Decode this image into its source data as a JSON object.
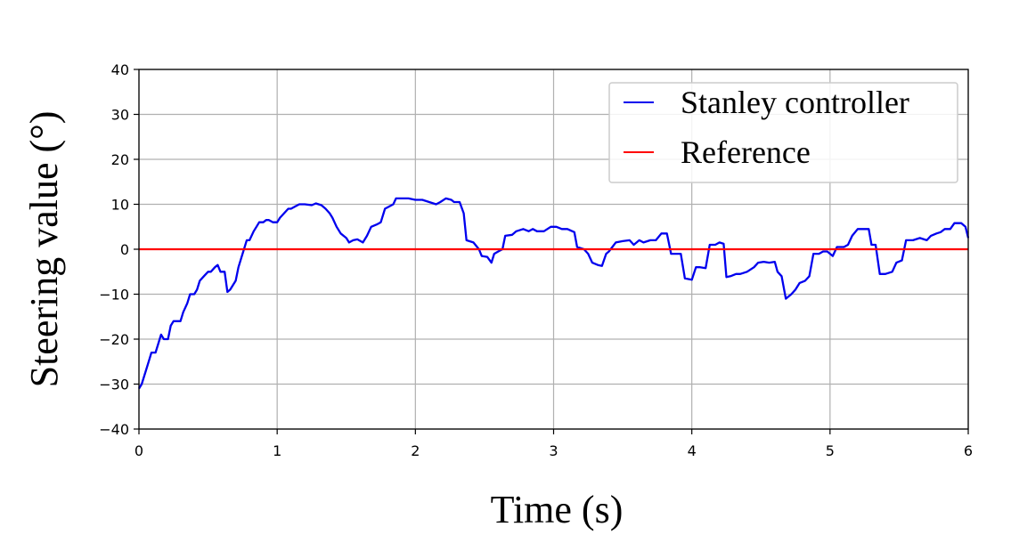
{
  "chart_data": {
    "type": "line",
    "xlabel": "Time (s)",
    "ylabel": "Steering value (°)",
    "xlim": [
      0,
      6
    ],
    "ylim": [
      -40,
      40
    ],
    "x_ticks": [
      "0",
      "1",
      "2",
      "3",
      "4",
      "5",
      "6"
    ],
    "y_ticks": [
      "40",
      "30",
      "20",
      "10",
      "0",
      "−10",
      "−20",
      "−30",
      "−40"
    ],
    "grid": true,
    "legend_position": "top-right",
    "series": [
      {
        "name": "Stanley controller",
        "color": "#0000ee",
        "points": [
          [
            0.0,
            -31
          ],
          [
            0.02,
            -30
          ],
          [
            0.05,
            -27
          ],
          [
            0.07,
            -25
          ],
          [
            0.09,
            -23
          ],
          [
            0.12,
            -23
          ],
          [
            0.14,
            -21
          ],
          [
            0.16,
            -19
          ],
          [
            0.18,
            -20
          ],
          [
            0.21,
            -20
          ],
          [
            0.23,
            -17
          ],
          [
            0.25,
            -16
          ],
          [
            0.3,
            -16
          ],
          [
            0.32,
            -14
          ],
          [
            0.35,
            -12
          ],
          [
            0.37,
            -10
          ],
          [
            0.4,
            -10
          ],
          [
            0.42,
            -9
          ],
          [
            0.44,
            -7
          ],
          [
            0.47,
            -6
          ],
          [
            0.5,
            -5
          ],
          [
            0.52,
            -5
          ],
          [
            0.55,
            -4
          ],
          [
            0.57,
            -3.5
          ],
          [
            0.59,
            -5
          ],
          [
            0.62,
            -5
          ],
          [
            0.64,
            -9.5
          ],
          [
            0.66,
            -9
          ],
          [
            0.68,
            -8
          ],
          [
            0.7,
            -7
          ],
          [
            0.72,
            -4
          ],
          [
            0.74,
            -2
          ],
          [
            0.76,
            0
          ],
          [
            0.78,
            2
          ],
          [
            0.8,
            2
          ],
          [
            0.83,
            4
          ],
          [
            0.85,
            5
          ],
          [
            0.87,
            6
          ],
          [
            0.9,
            6
          ],
          [
            0.92,
            6.5
          ],
          [
            0.94,
            6.5
          ],
          [
            0.97,
            6
          ],
          [
            1.0,
            6
          ],
          [
            1.02,
            7
          ],
          [
            1.05,
            8
          ],
          [
            1.08,
            9
          ],
          [
            1.1,
            9
          ],
          [
            1.13,
            9.5
          ],
          [
            1.16,
            10
          ],
          [
            1.2,
            10
          ],
          [
            1.25,
            9.8
          ],
          [
            1.28,
            10.2
          ],
          [
            1.32,
            9.8
          ],
          [
            1.35,
            9
          ],
          [
            1.38,
            8
          ],
          [
            1.4,
            7
          ],
          [
            1.43,
            5
          ],
          [
            1.46,
            3.5
          ],
          [
            1.5,
            2.5
          ],
          [
            1.52,
            1.5
          ],
          [
            1.55,
            2
          ],
          [
            1.58,
            2.2
          ],
          [
            1.62,
            1.5
          ],
          [
            1.65,
            3
          ],
          [
            1.68,
            5
          ],
          [
            1.72,
            5.5
          ],
          [
            1.75,
            6
          ],
          [
            1.78,
            9
          ],
          [
            1.81,
            9.5
          ],
          [
            1.84,
            10
          ],
          [
            1.86,
            11.3
          ],
          [
            1.9,
            11.3
          ],
          [
            1.95,
            11.3
          ],
          [
            2.0,
            11
          ],
          [
            2.05,
            11
          ],
          [
            2.1,
            10.5
          ],
          [
            2.15,
            10
          ],
          [
            2.18,
            10.5
          ],
          [
            2.22,
            11.3
          ],
          [
            2.26,
            11
          ],
          [
            2.28,
            10.5
          ],
          [
            2.32,
            10.5
          ],
          [
            2.35,
            8
          ],
          [
            2.37,
            2
          ],
          [
            2.42,
            1.5
          ],
          [
            2.46,
            0
          ],
          [
            2.48,
            -1.5
          ],
          [
            2.52,
            -1.7
          ],
          [
            2.55,
            -3
          ],
          [
            2.57,
            -1
          ],
          [
            2.6,
            -0.5
          ],
          [
            2.63,
            0
          ],
          [
            2.65,
            3
          ],
          [
            2.7,
            3.2
          ],
          [
            2.73,
            4
          ],
          [
            2.78,
            4.5
          ],
          [
            2.82,
            4
          ],
          [
            2.85,
            4.5
          ],
          [
            2.88,
            4
          ],
          [
            2.93,
            4
          ],
          [
            2.98,
            5
          ],
          [
            3.02,
            5
          ],
          [
            3.06,
            4.5
          ],
          [
            3.1,
            4.5
          ],
          [
            3.15,
            3.8
          ],
          [
            3.17,
            0.5
          ],
          [
            3.22,
            0
          ],
          [
            3.25,
            -1
          ],
          [
            3.28,
            -3
          ],
          [
            3.32,
            -3.5
          ],
          [
            3.35,
            -3.7
          ],
          [
            3.38,
            -1
          ],
          [
            3.4,
            -0.5
          ],
          [
            3.45,
            1.5
          ],
          [
            3.5,
            1.8
          ],
          [
            3.55,
            2
          ],
          [
            3.58,
            1
          ],
          [
            3.62,
            2
          ],
          [
            3.65,
            1.5
          ],
          [
            3.7,
            2
          ],
          [
            3.74,
            2
          ],
          [
            3.78,
            3.5
          ],
          [
            3.82,
            3.5
          ],
          [
            3.85,
            -1
          ],
          [
            3.89,
            -1
          ],
          [
            3.92,
            -1
          ],
          [
            3.95,
            -6.5
          ],
          [
            4.0,
            -6.8
          ],
          [
            4.03,
            -4
          ],
          [
            4.06,
            -4
          ],
          [
            4.1,
            -4.2
          ],
          [
            4.13,
            1
          ],
          [
            4.17,
            1
          ],
          [
            4.2,
            1.5
          ],
          [
            4.23,
            1.2
          ],
          [
            4.25,
            -6.2
          ],
          [
            4.28,
            -6
          ],
          [
            4.32,
            -5.5
          ],
          [
            4.35,
            -5.5
          ],
          [
            4.4,
            -5
          ],
          [
            4.45,
            -4
          ],
          [
            4.48,
            -3
          ],
          [
            4.52,
            -2.8
          ],
          [
            4.56,
            -3
          ],
          [
            4.6,
            -2.8
          ],
          [
            4.62,
            -5
          ],
          [
            4.65,
            -6
          ],
          [
            4.68,
            -11
          ],
          [
            4.72,
            -10
          ],
          [
            4.75,
            -9
          ],
          [
            4.78,
            -7.5
          ],
          [
            4.82,
            -7
          ],
          [
            4.85,
            -6
          ],
          [
            4.88,
            -1
          ],
          [
            4.92,
            -1
          ],
          [
            4.95,
            -0.5
          ],
          [
            4.98,
            -0.5
          ],
          [
            5.02,
            -1.5
          ],
          [
            5.05,
            0.5
          ],
          [
            5.1,
            0.5
          ],
          [
            5.13,
            1
          ],
          [
            5.16,
            3
          ],
          [
            5.2,
            4.5
          ],
          [
            5.25,
            4.5
          ],
          [
            5.28,
            4.5
          ],
          [
            5.3,
            1
          ],
          [
            5.33,
            1
          ],
          [
            5.36,
            -5.5
          ],
          [
            5.4,
            -5.5
          ],
          [
            5.45,
            -5
          ],
          [
            5.48,
            -3
          ],
          [
            5.52,
            -2.5
          ],
          [
            5.55,
            2
          ],
          [
            5.6,
            2
          ],
          [
            5.65,
            2.5
          ],
          [
            5.7,
            2
          ],
          [
            5.73,
            3
          ],
          [
            5.77,
            3.5
          ],
          [
            5.8,
            3.8
          ],
          [
            5.83,
            4.5
          ],
          [
            5.87,
            4.5
          ],
          [
            5.9,
            5.8
          ],
          [
            5.95,
            5.8
          ],
          [
            5.98,
            5
          ],
          [
            6.0,
            2.5
          ]
        ]
      },
      {
        "name": "Reference",
        "color": "#ff0000",
        "points": [
          [
            0,
            0
          ],
          [
            6,
            0
          ]
        ]
      }
    ]
  }
}
